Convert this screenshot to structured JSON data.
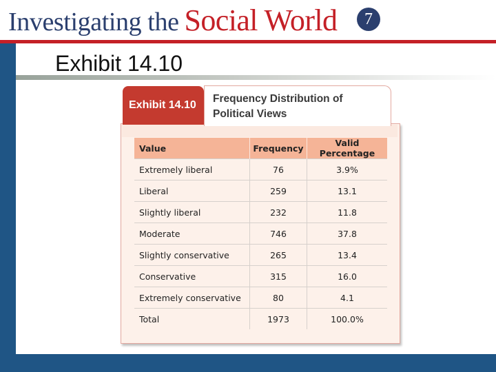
{
  "header": {
    "brand_part1": "Investigating the",
    "brand_part2": "Social World",
    "edition": "7"
  },
  "slide": {
    "title": "Exhibit 14.10"
  },
  "exhibit": {
    "tab_label": "Exhibit 14.10",
    "caption_line1": "Frequency Distribution of",
    "caption_line2": "Political Views"
  },
  "colors": {
    "navy": "#2b3f6e",
    "red": "#c42027",
    "sidebar": "#1f5585",
    "table_header": "#f5b497"
  },
  "chart_data": {
    "type": "table",
    "title": "Frequency Distribution of Political Views",
    "columns": [
      "Value",
      "Frequency",
      "Valid Percentage"
    ],
    "rows": [
      [
        "Extremely liberal",
        "76",
        "3.9%"
      ],
      [
        "Liberal",
        "259",
        "13.1"
      ],
      [
        "Slightly liberal",
        "232",
        "11.8"
      ],
      [
        "Moderate",
        "746",
        "37.8"
      ],
      [
        "Slightly conservative",
        "265",
        "13.4"
      ],
      [
        "Conservative",
        "315",
        "16.0"
      ],
      [
        "Extremely conservative",
        "80",
        "4.1"
      ],
      [
        "Total",
        "1973",
        "100.0%"
      ]
    ]
  }
}
